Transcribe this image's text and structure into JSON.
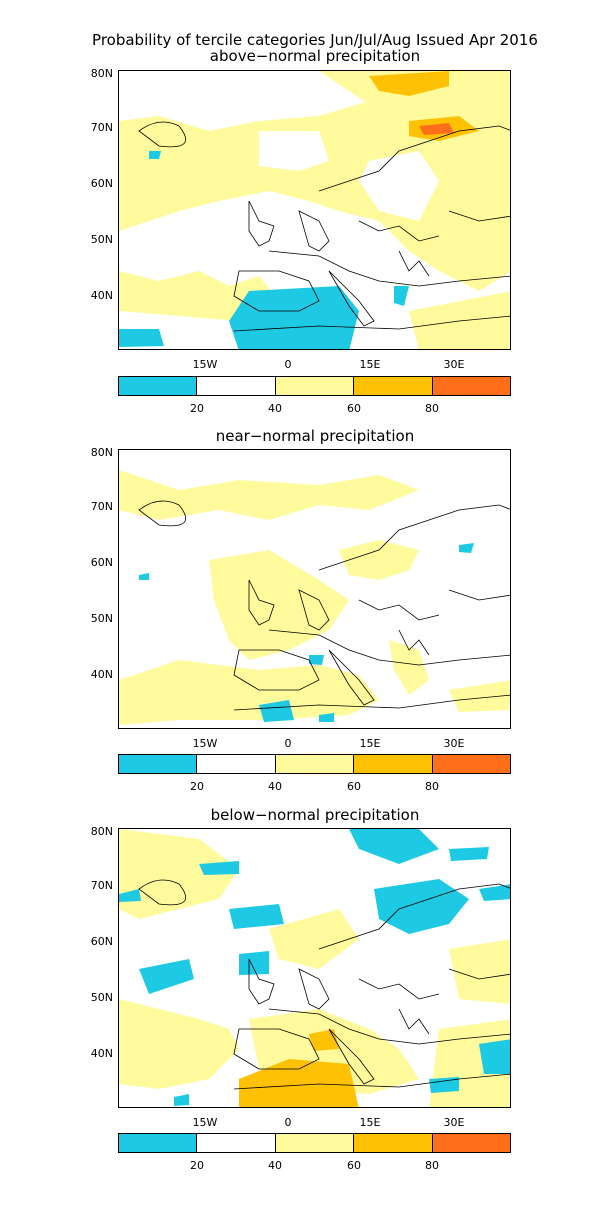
{
  "header": {
    "title": "Probability of tercile categories Jun/Jul/Aug Issued Apr 2016"
  },
  "panels": [
    {
      "title": "above−normal precipitation"
    },
    {
      "title": "near−normal precipitation"
    },
    {
      "title": "below−normal precipitation"
    }
  ],
  "axes": {
    "lat_labels": [
      "80N",
      "70N",
      "60N",
      "50N",
      "40N"
    ],
    "lon_labels": [
      "15W",
      "0",
      "15E",
      "30E"
    ]
  },
  "colorbar": {
    "labels": [
      "20",
      "40",
      "60",
      "80"
    ],
    "colors": [
      "#1ec9e3",
      "#ffffff",
      "#fffa9c",
      "#ffc103",
      "#ff6f1a"
    ]
  },
  "colors": {
    "cyan": "#1ec9e3",
    "light_yellow": "#fffa9c",
    "yellow": "#ffc103",
    "orange": "#ff6f1a",
    "coastline": "#000000"
  }
}
